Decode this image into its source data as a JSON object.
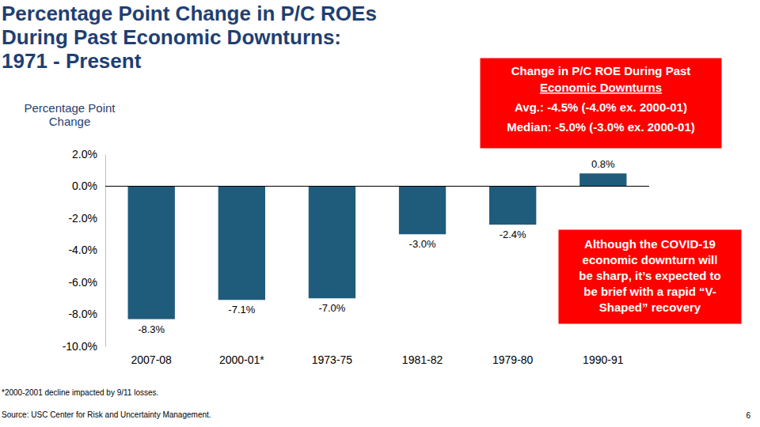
{
  "chart_data": {
    "type": "bar",
    "title": [
      "Percentage Point Change in P/C ROEs",
      "During Past Economic Downturns:",
      "1971 - Present"
    ],
    "y_label": [
      "Percentage Point",
      "Change"
    ],
    "categories": [
      "2007-08",
      "2000-01*",
      "1973-75",
      "1981-82",
      "1979-80",
      "1990-91"
    ],
    "values": [
      -8.3,
      -7.1,
      -7.0,
      -3.0,
      -2.4,
      0.8
    ],
    "value_labels": [
      "-8.3%",
      "-7.1%",
      "-7.0%",
      "-3.0%",
      "-2.4%",
      "0.8%"
    ],
    "color": "#1f5c7c",
    "ylim": [
      -10,
      2
    ],
    "yticks": [
      {
        "value": -10,
        "label": "-10.0%"
      },
      {
        "value": -8,
        "label": "-8.0%"
      },
      {
        "value": -6,
        "label": "-6.0%"
      },
      {
        "value": -4,
        "label": "-4.0%"
      },
      {
        "value": -2,
        "label": "-2.0%"
      },
      {
        "value": 0,
        "label": "0.0%"
      },
      {
        "value": 2,
        "label": "2.0%"
      }
    ],
    "grid": false,
    "data_labels": true,
    "annotations": [
      {
        "title": [
          "Change in P/C ROE During Past",
          "Economic Downturns"
        ],
        "lines": [
          "Avg.: -4.5% (-4.0% ex. 2000-01)",
          "Median: -5.0% (-3.0% ex. 2000-01)"
        ]
      },
      {
        "lines": [
          "Although the COVID-19",
          "economic downturn will",
          "be sharp, it’s expected to",
          "be brief with a rapid “V-",
          "Shaped” recovery"
        ]
      }
    ],
    "footnote": "*2000-2001 decline impacted by 9/11 losses.",
    "source": "Source: USC Center for Risk and Uncertainty Management.",
    "page_number": "6"
  }
}
